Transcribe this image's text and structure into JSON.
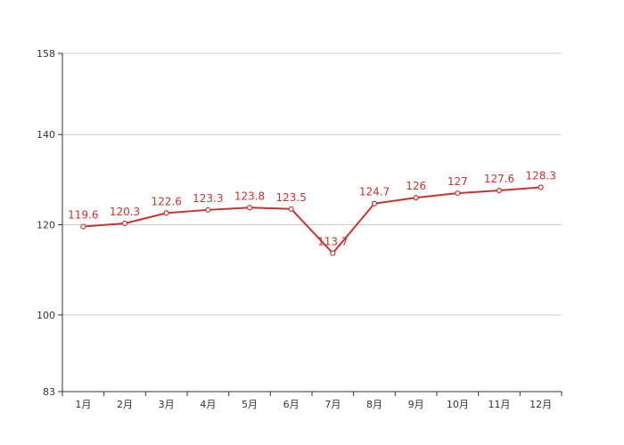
{
  "chart_data": {
    "type": "line",
    "title": "",
    "xlabel": "",
    "ylabel": "",
    "categories": [
      "1月",
      "2月",
      "3月",
      "4月",
      "5月",
      "6月",
      "7月",
      "8月",
      "9月",
      "10月",
      "11月",
      "12月"
    ],
    "series": [
      {
        "values": [
          119.6,
          120.3,
          122.6,
          123.3,
          123.8,
          123.5,
          113.7,
          124.7,
          126,
          127,
          127.6,
          128.3
        ],
        "labels": [
          "119.6",
          "120.3",
          "122.6",
          "123.3",
          "123.8",
          "123.5",
          "113.7",
          "124.7",
          "126",
          "127",
          "127.6",
          "128.3"
        ],
        "color": "#c23531"
      }
    ],
    "ylim": [
      83,
      158
    ],
    "yticks": [
      83,
      100,
      120,
      140,
      158
    ],
    "ytick_labels": [
      "83",
      "100",
      "120",
      "140",
      "158"
    ],
    "grid": true,
    "legend": "none"
  }
}
